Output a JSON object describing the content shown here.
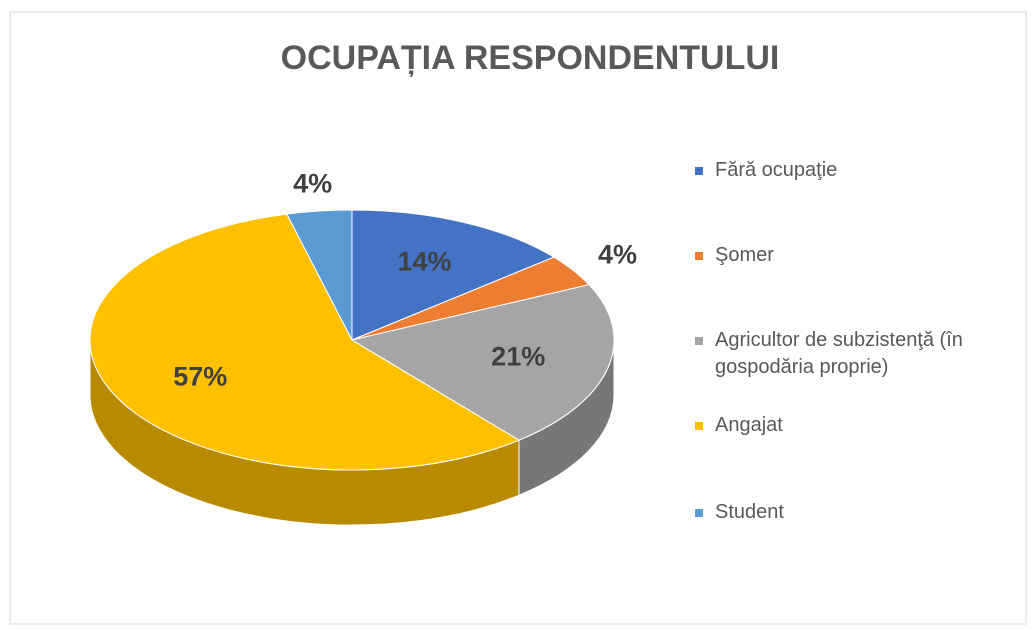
{
  "chart_data": {
    "type": "pie3d",
    "title": "OCUPAȚIA RESPONDENTULUI",
    "categories": [
      "Fără ocupaţie",
      "Şomer",
      "Agricultor de subzistenţă (în gospodăria proprie)",
      "Angajat",
      "Student"
    ],
    "values": [
      14,
      4,
      21,
      57,
      4
    ],
    "value_labels": [
      "14%",
      "4%",
      "21%",
      "57%",
      "4%"
    ],
    "colors": [
      "#4472c4",
      "#ed7d31",
      "#a5a5a5",
      "#ffc000",
      "#5b9bd5"
    ],
    "legend": "right"
  }
}
